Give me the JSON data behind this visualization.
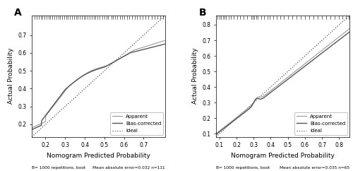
{
  "panel_A": {
    "label": "A",
    "xlim": [
      0.13,
      0.81
    ],
    "ylim": [
      0.13,
      0.81
    ],
    "xticks": [
      0.2,
      0.3,
      0.4,
      0.5,
      0.6,
      0.7
    ],
    "yticks": [
      0.2,
      0.3,
      0.4,
      0.5,
      0.6,
      0.7
    ],
    "xlabel": "Nomogram Predicted Probability",
    "ylabel": "Actual Probability",
    "footer_left": "B= 1000 repetitions, boot",
    "footer_right": "Mean absolute error=0.032 n=111",
    "rug_x": [
      0.145,
      0.155,
      0.165,
      0.175,
      0.185,
      0.195,
      0.205,
      0.215,
      0.225,
      0.235,
      0.245,
      0.255,
      0.265,
      0.275,
      0.285,
      0.295,
      0.305,
      0.315,
      0.325,
      0.335,
      0.345,
      0.355,
      0.365,
      0.375,
      0.385,
      0.395,
      0.405,
      0.415,
      0.425,
      0.435,
      0.445,
      0.455,
      0.465,
      0.475,
      0.49,
      0.5,
      0.51,
      0.52,
      0.535,
      0.545,
      0.555,
      0.565,
      0.58,
      0.59,
      0.6,
      0.615,
      0.625,
      0.64,
      0.655,
      0.665,
      0.68,
      0.695,
      0.71,
      0.725,
      0.74,
      0.755,
      0.77,
      0.785,
      0.8
    ]
  },
  "panel_B": {
    "label": "B",
    "xlim": [
      0.08,
      0.86
    ],
    "ylim": [
      0.08,
      0.86
    ],
    "xticks": [
      0.1,
      0.2,
      0.3,
      0.4,
      0.5,
      0.6,
      0.7,
      0.8
    ],
    "yticks": [
      0.1,
      0.2,
      0.3,
      0.4,
      0.5,
      0.6,
      0.7,
      0.8
    ],
    "xlabel": "Nomogram Predicted Probability",
    "ylabel": "Actual Probability",
    "footer_left": "B= 1000 repetitions, boot",
    "footer_right": "Mean absolute error=0.035 n=65",
    "rug_x": [
      0.09,
      0.1,
      0.11,
      0.12,
      0.13,
      0.14,
      0.155,
      0.165,
      0.185,
      0.205,
      0.22,
      0.24,
      0.26,
      0.285,
      0.295,
      0.305,
      0.315,
      0.325,
      0.345,
      0.36,
      0.38,
      0.395,
      0.415,
      0.435,
      0.455,
      0.475,
      0.5,
      0.525,
      0.55,
      0.575,
      0.6,
      0.625,
      0.65,
      0.675,
      0.7,
      0.725,
      0.75,
      0.775,
      0.8,
      0.82,
      0.84,
      0.855
    ]
  },
  "apparent_color": "#999999",
  "bias_corrected_color": "#555555",
  "ideal_color": "#555555",
  "bg_color": "#ffffff",
  "legend_fontsize": 5.0,
  "footer_fontsize": 4.2,
  "tick_fontsize": 5.5,
  "label_fontsize": 6.5
}
